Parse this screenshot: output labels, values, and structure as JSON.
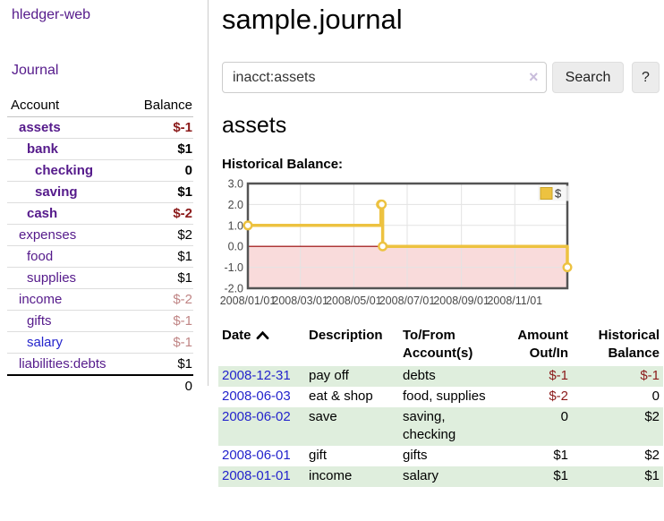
{
  "colors": {
    "link_purple": "#551a8b",
    "link_blue": "#2424cc",
    "negative_strong": "#8b1a1a",
    "negative_muted": "#c08585",
    "row_stripe_green": "#dfeedd",
    "button_bg": "#ececec",
    "border_gray": "#cccccc"
  },
  "app": {
    "brand": "hledger-web"
  },
  "sidebar": {
    "journal_label": "Journal",
    "accounts": {
      "headers": {
        "account": "Account",
        "balance": "Balance"
      },
      "rows": [
        {
          "name": "assets",
          "balance": "$-1",
          "depth": 1,
          "bold": true,
          "balance_style": "negative-strong"
        },
        {
          "name": "bank",
          "balance": "$1",
          "depth": 2,
          "bold": true,
          "balance_style": "normal"
        },
        {
          "name": "checking",
          "balance": "0",
          "depth": 3,
          "bold": true,
          "balance_style": "normal"
        },
        {
          "name": "saving",
          "balance": "$1",
          "depth": 3,
          "bold": true,
          "balance_style": "normal"
        },
        {
          "name": "cash",
          "balance": "$-2",
          "depth": 2,
          "bold": true,
          "balance_style": "negative-strong"
        },
        {
          "name": "expenses",
          "balance": "$2",
          "depth": 1,
          "bold": false,
          "balance_style": "normal"
        },
        {
          "name": "food",
          "balance": "$1",
          "depth": 2,
          "bold": false,
          "balance_style": "normal"
        },
        {
          "name": "supplies",
          "balance": "$1",
          "depth": 2,
          "bold": false,
          "balance_style": "normal"
        },
        {
          "name": "income",
          "balance": "$-2",
          "depth": 1,
          "bold": false,
          "balance_style": "negative-muted"
        },
        {
          "name": "gifts",
          "balance": "$-1",
          "depth": 2,
          "bold": false,
          "balance_style": "negative-muted"
        },
        {
          "name": "salary",
          "balance": "$-1",
          "depth": 2,
          "bold": false,
          "balance_style": "negative-muted",
          "link_color": "blue"
        },
        {
          "name": "liabilities:debts",
          "balance": "$1",
          "depth": 1,
          "bold": false,
          "balance_style": "normal"
        }
      ],
      "total": "0"
    }
  },
  "main": {
    "title": "sample.journal",
    "search": {
      "value": "inacct:assets",
      "clear_icon": "×",
      "button_label": "Search",
      "help_label": "?"
    },
    "account_heading": "assets",
    "chart_label": "Historical Balance:",
    "register": {
      "headers": {
        "date": "Date",
        "description": "Description",
        "accounts": "To/From Account(s)",
        "amount": "Amount Out/In",
        "balance": "Historical Balance"
      },
      "rows": [
        {
          "date": "2008-12-31",
          "description": "pay off",
          "accounts": "debts",
          "amount": "$-1",
          "amount_negative": true,
          "balance": "$-1",
          "balance_negative": true
        },
        {
          "date": "2008-06-03",
          "description": "eat & shop",
          "accounts": "food, supplies",
          "amount": "$-2",
          "amount_negative": true,
          "balance": "0",
          "balance_negative": false
        },
        {
          "date": "2008-06-02",
          "description": "save",
          "accounts": "saving, checking",
          "amount": "0",
          "amount_negative": false,
          "balance": "$2",
          "balance_negative": false
        },
        {
          "date": "2008-06-01",
          "description": "gift",
          "accounts": "gifts",
          "amount": "$1",
          "amount_negative": false,
          "balance": "$2",
          "balance_negative": false
        },
        {
          "date": "2008-01-01",
          "description": "income",
          "accounts": "salary",
          "amount": "$1",
          "amount_negative": false,
          "balance": "$1",
          "balance_negative": false
        }
      ]
    }
  },
  "chart_data": {
    "type": "line",
    "step": true,
    "title": "Historical Balance",
    "series": [
      {
        "name": "$",
        "color": "#edc240",
        "points": [
          {
            "x": "2008-01-01",
            "y": 1
          },
          {
            "x": "2008-06-01",
            "y": 2
          },
          {
            "x": "2008-06-02",
            "y": 2
          },
          {
            "x": "2008-06-03",
            "y": 0
          },
          {
            "x": "2008-12-31",
            "y": -1
          }
        ]
      }
    ],
    "x_ticks": [
      "2008/01/01",
      "2008/03/01",
      "2008/05/01",
      "2008/07/01",
      "2008/09/01",
      "2008/11/01"
    ],
    "y_ticks": [
      3.0,
      2.0,
      1.0,
      0.0,
      -1.0,
      -2.0
    ],
    "xlim": [
      "2008-01-01",
      "2008-12-31"
    ],
    "ylim": [
      -2,
      3
    ],
    "grid": true,
    "legend": {
      "label": "$",
      "position": "top-right"
    },
    "negative_region_color": "#f9dbdb",
    "zero_line_color": "#990000",
    "grid_color": "#e3e3e3",
    "border_color": "#545454",
    "marker_fill": "#ffffff"
  }
}
